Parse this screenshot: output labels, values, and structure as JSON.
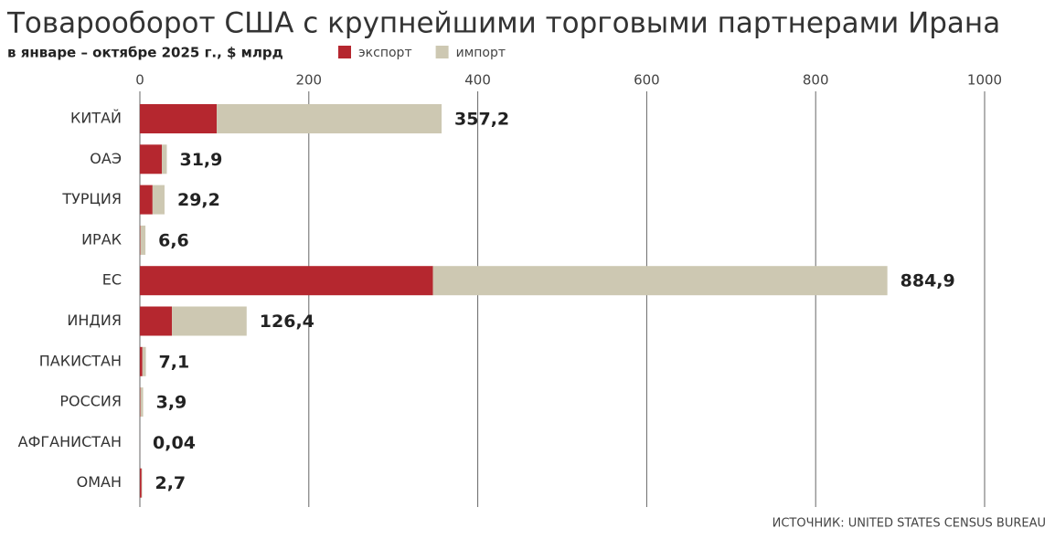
{
  "chart_data": {
    "type": "stacked-barh",
    "title": "Товарооборот США с крупнейшими торговыми партнерами Ирана",
    "subtitle": "в январе – октябре 2025 г., $ млрд",
    "source": "ИСТОЧНИК: UNITED STATES CENSUS BUREAU",
    "categories": [
      "КИТАЙ",
      "ОАЭ",
      "ТУРЦИЯ",
      "ИРАК",
      "ЕС",
      "ИНДИЯ",
      "ПАКИСТАН",
      "РОССИЯ",
      "АФГАНИСТАН",
      "ОМАН"
    ],
    "series": [
      {
        "name": "экспорт",
        "color": "#b5272f",
        "values": [
          91,
          26,
          15,
          0.5,
          347,
          38,
          3,
          0.5,
          0.03,
          2.0
        ]
      },
      {
        "name": "импорт",
        "color": "#cdc8b2",
        "values": [
          266.2,
          5.9,
          14.2,
          6.1,
          537.9,
          88.4,
          4.1,
          3.4,
          0.01,
          0.7
        ]
      }
    ],
    "totals": {
      "values": [
        357.2,
        31.9,
        29.2,
        6.6,
        884.9,
        126.4,
        7.1,
        3.9,
        0.04,
        2.7
      ],
      "value_labels": [
        "357,2",
        "31,9",
        "29,2",
        "6,6",
        "884,9",
        "126,4",
        "7,1",
        "3,9",
        "0,04",
        "2,7"
      ]
    },
    "xlim": [
      0,
      1000
    ],
    "xticks": [
      0,
      200,
      400,
      600,
      800,
      1000
    ],
    "grid": true
  }
}
